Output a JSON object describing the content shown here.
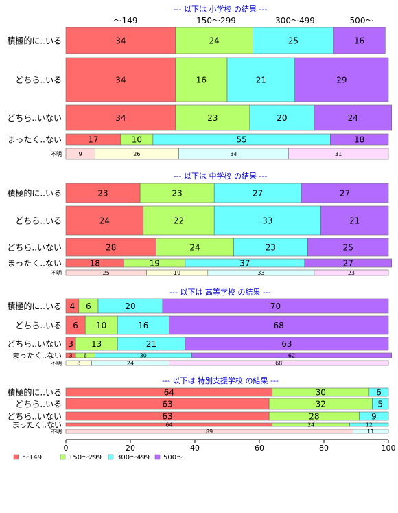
{
  "chart_data": {
    "type": "bar",
    "orientation": "horizontal",
    "stacked": true,
    "xlim": [
      0,
      100
    ],
    "x_ticks": [
      0,
      20,
      40,
      60,
      80,
      100
    ],
    "top_category_labels": [
      "～149",
      "150～299",
      "300～499",
      "500～"
    ],
    "legend": {
      "position": "bottom-left",
      "entries": [
        "～149",
        "150～299",
        "300～499",
        "500～"
      ]
    },
    "colors": [
      "#ff6b6b",
      "#b7ff6b",
      "#6bffff",
      "#b36bff"
    ],
    "light_colors": [
      "#ffdada",
      "#ffffda",
      "#daffff",
      "#ffdaff"
    ],
    "panels": [
      {
        "title": "--- 以下は 小学校 の結果 ---",
        "rows": [
          {
            "label": "積極的に..いる",
            "values": [
              34,
              24,
              25,
              16
            ]
          },
          {
            "label": "どちら..いる",
            "values": [
              34,
              16,
              21,
              29
            ]
          },
          {
            "label": "どちら..いない",
            "values": [
              34,
              23,
              20,
              24
            ]
          },
          {
            "label": "まったく..ない",
            "values": [
              17,
              10,
              55,
              18
            ]
          },
          {
            "label": "不明",
            "values": [
              9,
              26,
              34,
              31
            ]
          }
        ]
      },
      {
        "title": "--- 以下は 中学校 の結果 ---",
        "rows": [
          {
            "label": "積極的に..いる",
            "values": [
              23,
              23,
              27,
              27
            ]
          },
          {
            "label": "どちら..いる",
            "values": [
              24,
              22,
              33,
              21
            ]
          },
          {
            "label": "どちら..いない",
            "values": [
              28,
              24,
              23,
              25
            ]
          },
          {
            "label": "まったく..ない",
            "values": [
              18,
              19,
              37,
              27
            ]
          },
          {
            "label": "不明",
            "values": [
              25,
              19,
              33,
              23
            ]
          }
        ]
      },
      {
        "title": "--- 以下は 高等学校 の結果 ---",
        "rows": [
          {
            "label": "積極的に..いる",
            "values": [
              4,
              6,
              20,
              70
            ]
          },
          {
            "label": "どちら..いる",
            "values": [
              6,
              10,
              16,
              68
            ]
          },
          {
            "label": "どちら..いない",
            "values": [
              3,
              13,
              21,
              63
            ]
          },
          {
            "label": "まったく..ない",
            "values": [
              3,
              6,
              30,
              62
            ]
          },
          {
            "label": "不明",
            "values": [
              0,
              8,
              24,
              68
            ]
          }
        ]
      },
      {
        "title": "--- 以下は 特別支援学校 の結果 ---",
        "rows": [
          {
            "label": "積極的に..いる",
            "values": [
              64,
              30,
              6,
              0
            ]
          },
          {
            "label": "どちら..いる",
            "values": [
              63,
              32,
              5,
              0
            ]
          },
          {
            "label": "どちら..いない",
            "values": [
              63,
              28,
              9,
              0
            ]
          },
          {
            "label": "まったく..ない",
            "values": [
              64,
              24,
              12,
              0
            ]
          },
          {
            "label": "不明",
            "values": [
              89,
              0,
              11,
              0
            ]
          }
        ]
      }
    ]
  }
}
